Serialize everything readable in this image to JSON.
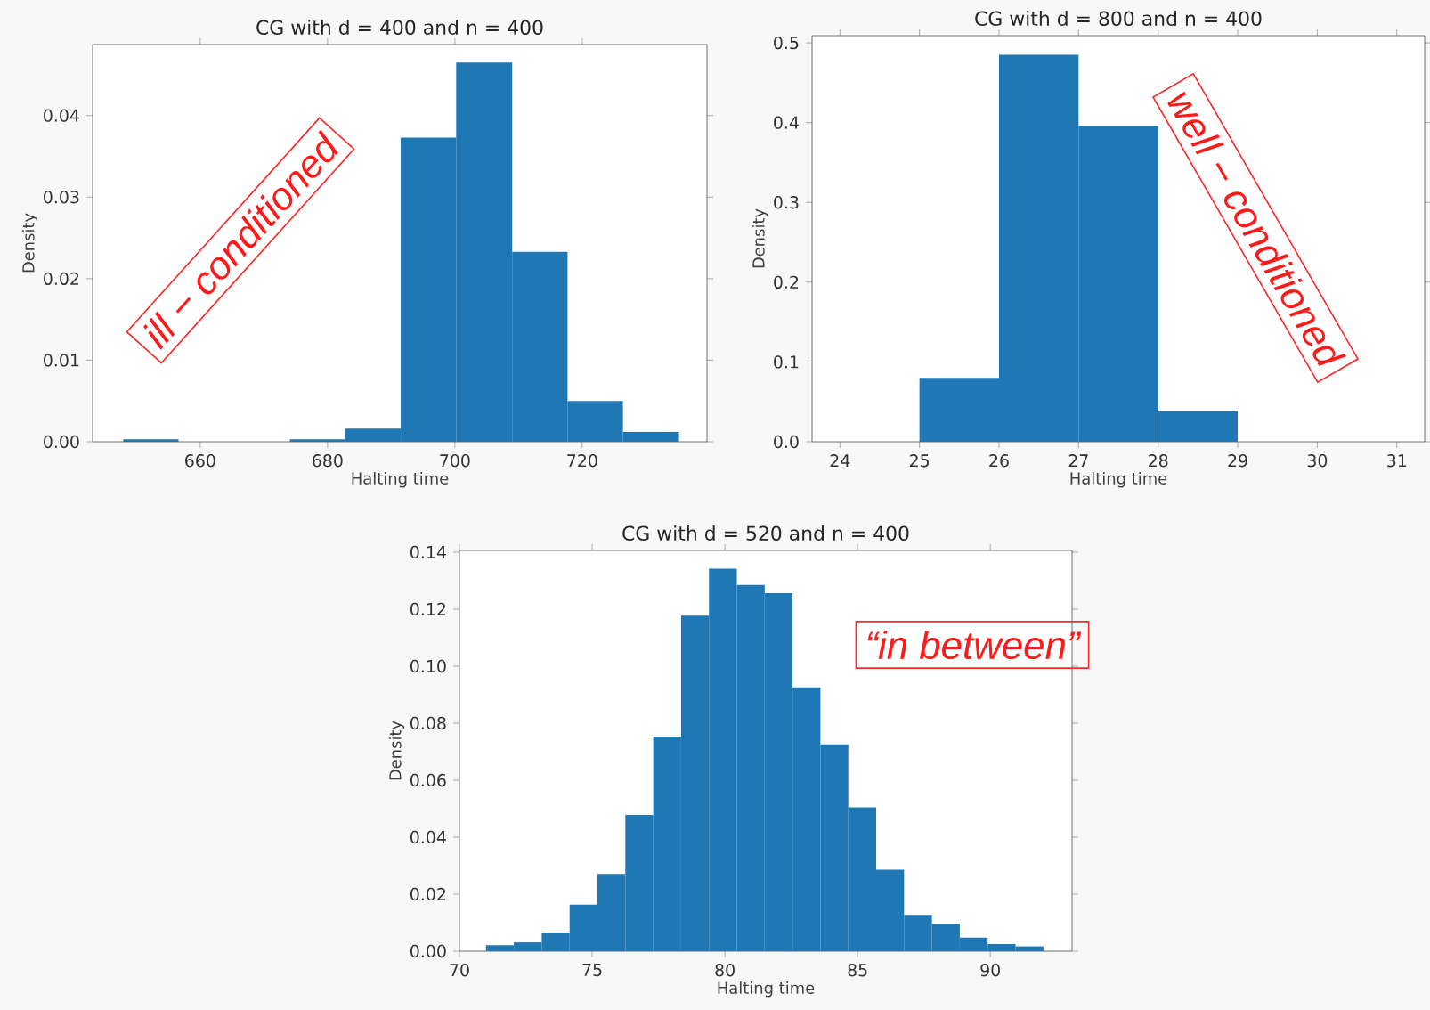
{
  "chart_data": [
    {
      "type": "histogram",
      "title": "CG with d = 400 and n = 400",
      "xlabel": "Halting time",
      "ylabel": "Density",
      "color": "#1f77b4",
      "bins": [
        647.9,
        656.6,
        674.1,
        682.8,
        691.5,
        700.2,
        709.0,
        717.7,
        726.4,
        735.2
      ],
      "values": [
        0.0003,
        0,
        0.0003,
        0.0016,
        0.0373,
        0.0465,
        0.0233,
        0.005,
        0.0012
      ],
      "xlim": [
        643.1,
        739.6
      ],
      "ylim": [
        0,
        0.0487
      ],
      "xticks": [
        660,
        680,
        700,
        720
      ],
      "yticks": [
        {
          "value": 0,
          "label": "0.00"
        },
        {
          "value": 0.01,
          "label": "0.01"
        },
        {
          "value": 0.02,
          "label": "0.02"
        },
        {
          "value": 0.03,
          "label": "0.03"
        },
        {
          "value": 0.04,
          "label": "0.04"
        }
      ],
      "annotations": [
        "ill − conditioned"
      ]
    },
    {
      "type": "histogram",
      "title": "CG with d = 800 and n = 400",
      "xlabel": "Halting time",
      "ylabel": "Density",
      "color": "#1f77b4",
      "bins": [
        25,
        26,
        27,
        28,
        29
      ],
      "values": [
        0.08,
        0.485,
        0.396,
        0.038
      ],
      "xlim": [
        23.65,
        31.35
      ],
      "ylim": [
        0,
        0.509
      ],
      "xticks": [
        24,
        25,
        26,
        27,
        28,
        29,
        30,
        31
      ],
      "yticks": [
        {
          "value": 0,
          "label": "0.0"
        },
        0.1,
        0.2,
        0.3,
        0.4,
        0.5
      ],
      "annotations": [
        "well − conditioned"
      ]
    },
    {
      "type": "histogram",
      "title": "CG with d = 520 and n = 400",
      "xlabel": "Halting time",
      "ylabel": "Density",
      "color": "#1f77b4",
      "bins": [
        71.0,
        72.05,
        73.1,
        74.15,
        75.2,
        76.25,
        77.3,
        78.35,
        79.4,
        80.45,
        81.5,
        82.55,
        83.6,
        84.65,
        85.7,
        86.75,
        87.8,
        88.85,
        89.9,
        90.95,
        92.0
      ],
      "values": [
        0.0021,
        0.0031,
        0.0065,
        0.0163,
        0.0271,
        0.0478,
        0.0753,
        0.1177,
        0.1342,
        0.1285,
        0.1256,
        0.0926,
        0.0726,
        0.0505,
        0.0286,
        0.0127,
        0.0096,
        0.0048,
        0.0025,
        0.0017
      ],
      "xlim": [
        70,
        93.08
      ],
      "ylim": [
        0,
        0.1406
      ],
      "xticks": [
        70,
        75,
        80,
        85,
        90
      ],
      "yticks": [
        {
          "value": 0,
          "label": "0.00"
        },
        {
          "value": 0.02,
          "label": "0.02"
        },
        {
          "value": 0.04,
          "label": "0.04"
        },
        {
          "value": 0.06,
          "label": "0.06"
        },
        {
          "value": 0.08,
          "label": "0.08"
        },
        {
          "value": 0.1,
          "label": "0.10"
        },
        {
          "value": 0.12,
          "label": "0.12"
        },
        {
          "value": 0.14,
          "label": "0.14"
        }
      ],
      "annotations": [
        "“in between”"
      ]
    }
  ]
}
